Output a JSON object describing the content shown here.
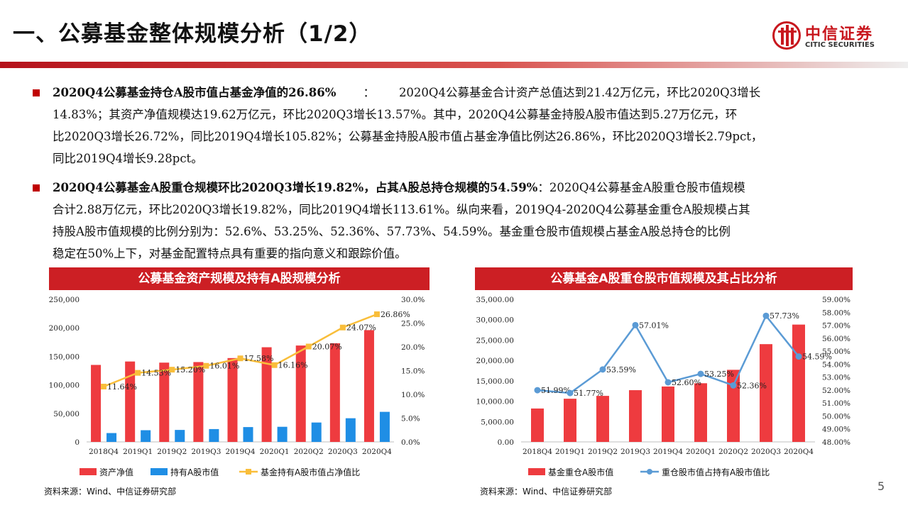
{
  "page": {
    "title": "一、公募基金整体规模分析（1/2）",
    "logo_cn": "中信证券",
    "logo_en": "CITIC SECURITIES",
    "page_number": "5"
  },
  "paragraphs": [
    {
      "bold": "2020Q4公募基金持仓A股市值占基金净值的26.86%",
      "sep": "：",
      "lines": [
        "2020Q4公募基金合计资产总值达到21.42万亿元，环比2020Q3增长",
        "14.83%；其资产净值规模达19.62万亿元，环比2020Q3增长13.57%。其中，2020Q4公募基金持股A股市值达到5.27万亿元，环",
        "比2020Q3增长26.72%，同比2019Q4增长105.82%；公募基金持股A股市值占基金净值比例达26.86%，环比2020Q3增长2.79pct，",
        "同比2019Q4增长9.28pct。"
      ]
    },
    {
      "bold": "2020Q4公募基金A股重仓规模环比2020Q3增长19.82%，占其A股总持仓规模的54.59%",
      "sep": "：",
      "lines": [
        "2020Q4公募基金A股重仓股市值规模",
        "合计2.88万亿元，环比2020Q3增长19.82%，同比2019Q4增长113.61%。纵向来看，2019Q4-2020Q4公募基金重仓A股规模占其",
        "持股A股市值规模的比例分别为：52.6%、53.25%、52.36%、57.73%、54.59%。基金重仓股市值规模占基金A股总持仓的比例",
        "稳定在50%上下，对基金配置特点具有重要的指向意义和跟踪价值。"
      ]
    }
  ],
  "panels": [
    {
      "title": "公募基金资产规模及持有A股规模分析",
      "source": "资料来源：Wind、中信证券研究部"
    },
    {
      "title": "公募基金A股重仓股市值规模及其占比分析",
      "source": "资料来源：Wind、中信证券研究部"
    }
  ],
  "chart_data": [
    {
      "type": "bar",
      "categories": [
        "2018Q4",
        "2019Q1",
        "2019Q2",
        "2019Q3",
        "2019Q4",
        "2020Q1",
        "2020Q2",
        "2020Q3",
        "2020Q4"
      ],
      "series": [
        {
          "name": "资产净值",
          "type": "bar",
          "axis": "left",
          "color": "#ee3b3f",
          "values": [
            135000,
            141000,
            139000,
            140000,
            147000,
            166000,
            169000,
            173000,
            196000
          ]
        },
        {
          "name": "持有A股市值",
          "type": "bar",
          "axis": "left",
          "color": "#1f8ee5",
          "values": [
            15500,
            20500,
            21000,
            22500,
            26000,
            26500,
            34000,
            41500,
            52700
          ]
        },
        {
          "name": "基金持有A股市值占净值比",
          "type": "line",
          "axis": "right",
          "color": "#f9be3a",
          "values": [
            11.64,
            14.53,
            15.2,
            16.01,
            17.58,
            16.16,
            20.07,
            24.07,
            26.86
          ],
          "labels": [
            "11.64%",
            "14.53%",
            "15.20%",
            "16.01%",
            "17.58%",
            "16.16%",
            "20.07%",
            "24.07%",
            "26.86%"
          ]
        }
      ],
      "left_axis": {
        "min": 0,
        "max": 250000,
        "ticks": [
          "0",
          "50,000",
          "100,000",
          "150,000",
          "200,000",
          "250,000"
        ]
      },
      "right_axis": {
        "min": 0,
        "max": 30,
        "ticks": [
          "0.0%",
          "5.0%",
          "10.0%",
          "15.0%",
          "20.0%",
          "25.0%",
          "30.0%"
        ]
      },
      "grid": false,
      "legend_position": "bottom"
    },
    {
      "type": "bar",
      "categories": [
        "2018Q4",
        "2019Q1",
        "2019Q2",
        "2019Q3",
        "2019Q4",
        "2020Q1",
        "2020Q2",
        "2020Q3",
        "2020Q4"
      ],
      "series": [
        {
          "name": "基金重仓A股市值",
          "type": "bar",
          "axis": "left",
          "color": "#ee3b3f",
          "values": [
            8200,
            10600,
            11300,
            12700,
            13600,
            14400,
            17700,
            24000,
            28800
          ]
        },
        {
          "name": "重仓股市值占持有A股市值比",
          "type": "line",
          "axis": "right",
          "color": "#5b9bd5",
          "values": [
            51.99,
            51.77,
            53.59,
            57.01,
            52.6,
            53.25,
            52.36,
            57.73,
            54.59
          ],
          "labels": [
            "51.99%",
            "51.77%",
            "53.59%",
            "57.01%",
            "52.60%",
            "53.25%",
            "52.36%",
            "57.73%",
            "54.59%"
          ]
        }
      ],
      "left_axis": {
        "min": 0,
        "max": 35000,
        "ticks": [
          "0.00",
          "5,000.00",
          "10,000.00",
          "15,000.00",
          "20,000.00",
          "25,000.00",
          "30,000.00",
          "35,000.00"
        ]
      },
      "right_axis": {
        "min": 48,
        "max": 59,
        "ticks": [
          "48.00%",
          "49.00%",
          "50.00%",
          "51.00%",
          "52.00%",
          "53.00%",
          "54.00%",
          "55.00%",
          "56.00%",
          "57.00%",
          "58.00%",
          "59.00%"
        ]
      },
      "grid": false,
      "legend_position": "bottom"
    }
  ]
}
